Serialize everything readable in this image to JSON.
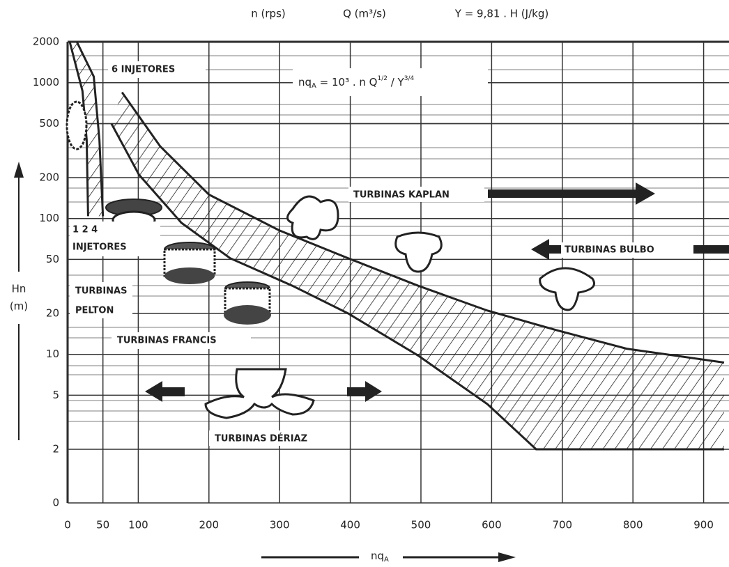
{
  "chart_data": {
    "type": "band",
    "header": [
      "n (rps)",
      "Q (m³/s)",
      "Y = 9,81 . H (J/kg)"
    ],
    "formula": [
      "nq",
      "A",
      " = 10³ . n Q",
      "1/2",
      " / Y",
      "3/4"
    ],
    "xlabel": [
      "nq",
      "A"
    ],
    "ylabel": [
      "Hn",
      "(m)"
    ],
    "xlim": [
      0,
      930
    ],
    "xticks": [
      0,
      50,
      100,
      200,
      300,
      400,
      500,
      600,
      700,
      800,
      900
    ],
    "ylim": [
      0,
      2000
    ],
    "yscale": "log",
    "yticks": [
      2000,
      1000,
      500,
      200,
      100,
      50,
      20,
      10,
      5,
      2,
      0
    ],
    "grid": true,
    "color": "#222222",
    "bands": [
      {
        "x_upper": [
          13,
          37,
          45,
          50
        ],
        "y_upper": [
          2000,
          1110,
          380,
          104
        ],
        "x_lower": [
          3,
          21,
          27,
          29
        ],
        "y_lower": [
          2000,
          870,
          380,
          104
        ]
      },
      {
        "x_upper": [
          77,
          131,
          200,
          299,
          397,
          496,
          594,
          693,
          791,
          929
        ],
        "y_upper": [
          850,
          340,
          150,
          82,
          51,
          32,
          21,
          15,
          11,
          8.7
        ],
        "x_lower": [
          62,
          101,
          161,
          230,
          318,
          397,
          496,
          594,
          663,
          929
        ],
        "y_lower": [
          500,
          210,
          93,
          51,
          32,
          20,
          9.8,
          4.3,
          2,
          2
        ]
      }
    ],
    "annotations": [
      "6 INJETORES",
      "1 2 4",
      "INJETORES",
      "TURBINAS",
      "PELTON",
      "TURBINAS FRANCIS",
      "TURBINAS KAPLAN",
      "TURBINAS BULBO",
      "TURBINAS DÉRIAZ"
    ]
  }
}
